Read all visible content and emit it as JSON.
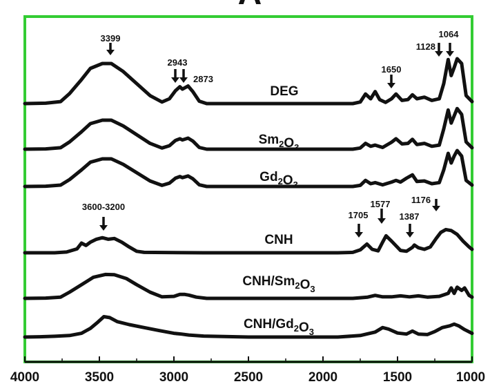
{
  "chart_data": {
    "type": "line",
    "panel_label": "A",
    "x_axis": {
      "reversed": true,
      "xlim": [
        4000,
        1000
      ],
      "tick_labels": [
        "4000",
        "3500",
        "3000",
        "2500",
        "2000",
        "1500",
        "1000"
      ]
    },
    "xlabel": "",
    "ylabel": "",
    "grid": false,
    "frame_color": "#33cc33",
    "line_color": "#111111",
    "series": [
      {
        "name": "DEG",
        "label_parts": [
          {
            "t": "DEG"
          }
        ],
        "points": [
          [
            4000,
            0
          ],
          [
            3860,
            0.01
          ],
          [
            3760,
            0.05
          ],
          [
            3700,
            0.25
          ],
          [
            3620,
            0.6
          ],
          [
            3560,
            0.88
          ],
          [
            3480,
            1.0
          ],
          [
            3420,
            1.0
          ],
          [
            3340,
            0.8
          ],
          [
            3250,
            0.5
          ],
          [
            3160,
            0.2
          ],
          [
            3080,
            0.04
          ],
          [
            3030,
            0.12
          ],
          [
            2990,
            0.32
          ],
          [
            2960,
            0.42
          ],
          [
            2943,
            0.36
          ],
          [
            2905,
            0.44
          ],
          [
            2873,
            0.3
          ],
          [
            2830,
            0.06
          ],
          [
            2780,
            0.0
          ],
          [
            1800,
            0.0
          ],
          [
            1750,
            0.04
          ],
          [
            1715,
            0.24
          ],
          [
            1680,
            0.12
          ],
          [
            1650,
            0.3
          ],
          [
            1620,
            0.1
          ],
          [
            1580,
            0.03
          ],
          [
            1540,
            0.12
          ],
          [
            1510,
            0.24
          ],
          [
            1470,
            0.08
          ],
          [
            1430,
            0.1
          ],
          [
            1400,
            0.22
          ],
          [
            1370,
            0.12
          ],
          [
            1320,
            0.16
          ],
          [
            1270,
            0.08
          ],
          [
            1220,
            0.12
          ],
          [
            1190,
            0.5
          ],
          [
            1160,
            1.1
          ],
          [
            1140,
            0.7
          ],
          [
            1120,
            0.9
          ],
          [
            1100,
            1.12
          ],
          [
            1070,
            1.0
          ],
          [
            1040,
            0.2
          ],
          [
            1000,
            0.05
          ]
        ]
      },
      {
        "name": "Sm2O3",
        "label_parts": [
          {
            "t": "Sm"
          },
          {
            "t": "2",
            "sub": true
          },
          {
            "t": "O"
          },
          {
            "t": "3",
            "sub": true
          }
        ],
        "points": [
          [
            4000,
            0
          ],
          [
            3860,
            0.01
          ],
          [
            3760,
            0.05
          ],
          [
            3700,
            0.25
          ],
          [
            3620,
            0.6
          ],
          [
            3560,
            0.88
          ],
          [
            3480,
            1.0
          ],
          [
            3420,
            1.0
          ],
          [
            3340,
            0.8
          ],
          [
            3250,
            0.5
          ],
          [
            3160,
            0.2
          ],
          [
            3080,
            0.04
          ],
          [
            3030,
            0.12
          ],
          [
            2990,
            0.3
          ],
          [
            2960,
            0.36
          ],
          [
            2943,
            0.32
          ],
          [
            2905,
            0.38
          ],
          [
            2873,
            0.28
          ],
          [
            2830,
            0.06
          ],
          [
            2780,
            0.0
          ],
          [
            1800,
            0.0
          ],
          [
            1750,
            0.04
          ],
          [
            1715,
            0.2
          ],
          [
            1680,
            0.1
          ],
          [
            1650,
            0.14
          ],
          [
            1600,
            0.06
          ],
          [
            1540,
            0.24
          ],
          [
            1510,
            0.36
          ],
          [
            1470,
            0.18
          ],
          [
            1430,
            0.2
          ],
          [
            1400,
            0.34
          ],
          [
            1370,
            0.16
          ],
          [
            1320,
            0.2
          ],
          [
            1270,
            0.1
          ],
          [
            1220,
            0.14
          ],
          [
            1190,
            0.7
          ],
          [
            1160,
            1.35
          ],
          [
            1140,
            0.9
          ],
          [
            1120,
            1.15
          ],
          [
            1100,
            1.4
          ],
          [
            1070,
            1.2
          ],
          [
            1040,
            0.25
          ],
          [
            1000,
            0.05
          ]
        ]
      },
      {
        "name": "Gd2O3",
        "label_parts": [
          {
            "t": "Gd"
          },
          {
            "t": "2",
            "sub": true
          },
          {
            "t": "O"
          },
          {
            "t": "3",
            "sub": true
          }
        ],
        "points": [
          [
            4000,
            0
          ],
          [
            3860,
            0.01
          ],
          [
            3760,
            0.05
          ],
          [
            3700,
            0.25
          ],
          [
            3620,
            0.6
          ],
          [
            3560,
            0.88
          ],
          [
            3480,
            1.0
          ],
          [
            3420,
            1.0
          ],
          [
            3340,
            0.8
          ],
          [
            3250,
            0.5
          ],
          [
            3160,
            0.2
          ],
          [
            3080,
            0.04
          ],
          [
            3030,
            0.12
          ],
          [
            2990,
            0.3
          ],
          [
            2960,
            0.36
          ],
          [
            2943,
            0.32
          ],
          [
            2905,
            0.38
          ],
          [
            2873,
            0.28
          ],
          [
            2830,
            0.06
          ],
          [
            2780,
            0.0
          ],
          [
            1800,
            0.0
          ],
          [
            1750,
            0.04
          ],
          [
            1715,
            0.22
          ],
          [
            1680,
            0.1
          ],
          [
            1650,
            0.14
          ],
          [
            1600,
            0.06
          ],
          [
            1540,
            0.16
          ],
          [
            1510,
            0.22
          ],
          [
            1480,
            0.16
          ],
          [
            1440,
            0.3
          ],
          [
            1400,
            0.42
          ],
          [
            1370,
            0.18
          ],
          [
            1320,
            0.2
          ],
          [
            1270,
            0.1
          ],
          [
            1220,
            0.14
          ],
          [
            1190,
            0.6
          ],
          [
            1160,
            1.2
          ],
          [
            1140,
            0.85
          ],
          [
            1120,
            1.1
          ],
          [
            1100,
            1.3
          ],
          [
            1070,
            1.1
          ],
          [
            1040,
            0.22
          ],
          [
            1000,
            0.05
          ]
        ]
      },
      {
        "name": "CNH",
        "label_parts": [
          {
            "t": "CNH"
          }
        ],
        "points": [
          [
            4000,
            0
          ],
          [
            3800,
            0.0
          ],
          [
            3720,
            0.04
          ],
          [
            3650,
            0.2
          ],
          [
            3620,
            0.5
          ],
          [
            3590,
            0.38
          ],
          [
            3560,
            0.55
          ],
          [
            3520,
            0.7
          ],
          [
            3480,
            0.78
          ],
          [
            3440,
            0.7
          ],
          [
            3400,
            0.74
          ],
          [
            3350,
            0.55
          ],
          [
            3300,
            0.3
          ],
          [
            3250,
            0.08
          ],
          [
            3200,
            0.02
          ],
          [
            2800,
            0.0
          ],
          [
            1900,
            0.0
          ],
          [
            1800,
            0.02
          ],
          [
            1750,
            0.15
          ],
          [
            1705,
            0.45
          ],
          [
            1670,
            0.18
          ],
          [
            1630,
            0.1
          ],
          [
            1600,
            0.55
          ],
          [
            1577,
            0.88
          ],
          [
            1540,
            0.6
          ],
          [
            1480,
            0.12
          ],
          [
            1440,
            0.08
          ],
          [
            1400,
            0.28
          ],
          [
            1387,
            0.4
          ],
          [
            1360,
            0.26
          ],
          [
            1320,
            0.18
          ],
          [
            1280,
            0.3
          ],
          [
            1240,
            0.75
          ],
          [
            1210,
            1.05
          ],
          [
            1176,
            1.2
          ],
          [
            1140,
            1.15
          ],
          [
            1100,
            0.95
          ],
          [
            1060,
            0.6
          ],
          [
            1020,
            0.3
          ],
          [
            1000,
            0.18
          ]
        ]
      },
      {
        "name": "CNH/Sm2O3",
        "label_parts": [
          {
            "t": "CNH/Sm"
          },
          {
            "t": "2",
            "sub": true
          },
          {
            "t": "O"
          },
          {
            "t": "3",
            "sub": true
          }
        ],
        "points": [
          [
            4000,
            0
          ],
          [
            3860,
            0.01
          ],
          [
            3760,
            0.05
          ],
          [
            3700,
            0.25
          ],
          [
            3620,
            0.55
          ],
          [
            3540,
            0.85
          ],
          [
            3460,
            0.96
          ],
          [
            3400,
            0.95
          ],
          [
            3320,
            0.8
          ],
          [
            3250,
            0.55
          ],
          [
            3160,
            0.25
          ],
          [
            3080,
            0.06
          ],
          [
            3000,
            0.08
          ],
          [
            2960,
            0.16
          ],
          [
            2930,
            0.16
          ],
          [
            2900,
            0.13
          ],
          [
            2850,
            0.05
          ],
          [
            2780,
            0.0
          ],
          [
            1800,
            0.0
          ],
          [
            1700,
            0.05
          ],
          [
            1650,
            0.12
          ],
          [
            1600,
            0.06
          ],
          [
            1540,
            0.06
          ],
          [
            1480,
            0.1
          ],
          [
            1420,
            0.06
          ],
          [
            1360,
            0.1
          ],
          [
            1300,
            0.05
          ],
          [
            1220,
            0.08
          ],
          [
            1160,
            0.2
          ],
          [
            1140,
            0.42
          ],
          [
            1120,
            0.2
          ],
          [
            1100,
            0.45
          ],
          [
            1070,
            0.32
          ],
          [
            1050,
            0.42
          ],
          [
            1020,
            0.12
          ],
          [
            1000,
            0.05
          ]
        ]
      },
      {
        "name": "CNH/Gd2O3",
        "label_parts": [
          {
            "t": "CNH/Gd"
          },
          {
            "t": "2",
            "sub": true
          },
          {
            "t": "O"
          },
          {
            "t": "3",
            "sub": true
          }
        ],
        "points": [
          [
            4000,
            0
          ],
          [
            3900,
            0.01
          ],
          [
            3800,
            0.03
          ],
          [
            3700,
            0.06
          ],
          [
            3620,
            0.15
          ],
          [
            3560,
            0.35
          ],
          [
            3510,
            0.6
          ],
          [
            3470,
            0.82
          ],
          [
            3430,
            0.78
          ],
          [
            3380,
            0.62
          ],
          [
            3300,
            0.5
          ],
          [
            3200,
            0.38
          ],
          [
            3100,
            0.26
          ],
          [
            3000,
            0.15
          ],
          [
            2950,
            0.12
          ],
          [
            2900,
            0.08
          ],
          [
            2800,
            0.04
          ],
          [
            2500,
            0.0
          ],
          [
            1900,
            0.0
          ],
          [
            1750,
            0.06
          ],
          [
            1650,
            0.2
          ],
          [
            1600,
            0.38
          ],
          [
            1560,
            0.32
          ],
          [
            1500,
            0.16
          ],
          [
            1440,
            0.12
          ],
          [
            1400,
            0.24
          ],
          [
            1360,
            0.12
          ],
          [
            1300,
            0.1
          ],
          [
            1250,
            0.22
          ],
          [
            1200,
            0.38
          ],
          [
            1150,
            0.45
          ],
          [
            1120,
            0.52
          ],
          [
            1090,
            0.45
          ],
          [
            1050,
            0.3
          ],
          [
            1000,
            0.15
          ]
        ]
      }
    ],
    "annotations": [
      {
        "text": "3399",
        "arrow": true
      },
      {
        "text": "2943",
        "arrow": true
      },
      {
        "text": "2873",
        "arrow": true
      },
      {
        "text": "1650",
        "arrow": true
      },
      {
        "text": "1128",
        "arrow": true
      },
      {
        "text": "1064",
        "arrow": true
      },
      {
        "text": "3600-3200",
        "arrow": true
      },
      {
        "text": "1705",
        "arrow": true
      },
      {
        "text": "1577",
        "arrow": true
      },
      {
        "text": "1387",
        "arrow": true
      },
      {
        "text": "1176",
        "arrow": true
      }
    ]
  }
}
